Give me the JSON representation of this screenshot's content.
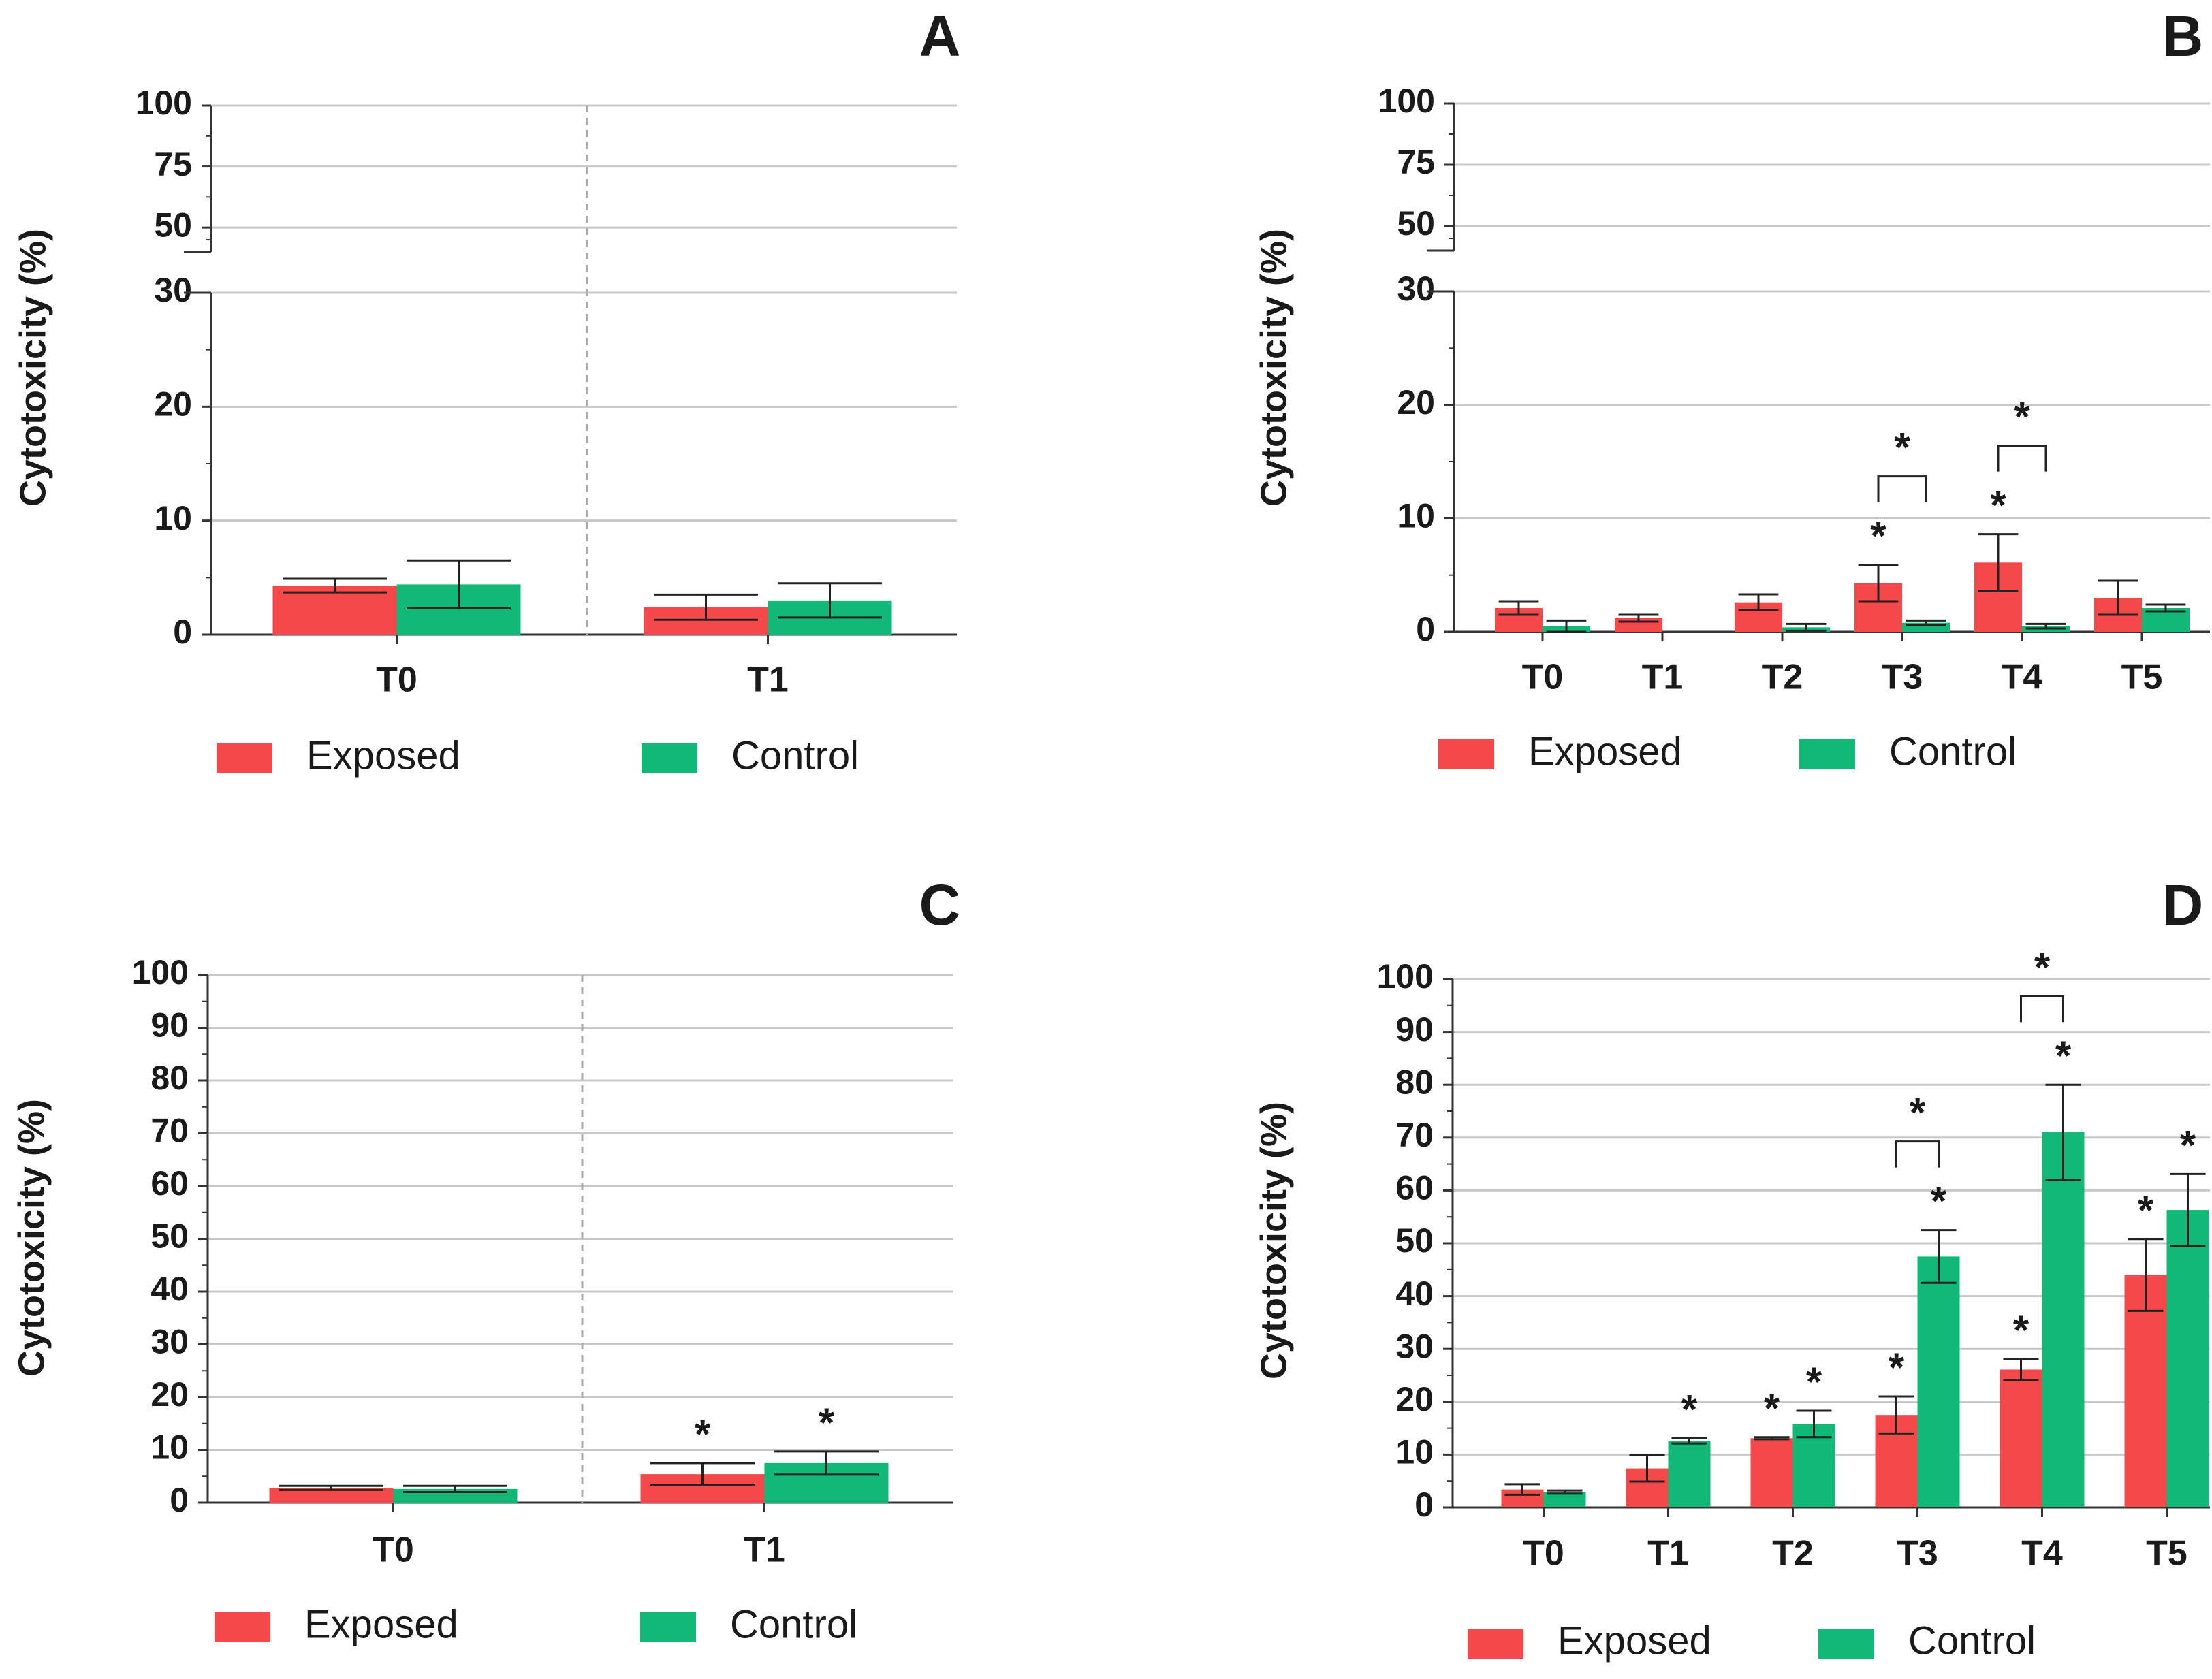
{
  "colors": {
    "exposed": "#f4484a",
    "control": "#12b876",
    "grid": "#c8c8c8",
    "axis": "#333333",
    "text": "#1a1a1a"
  },
  "chart_data": [
    {
      "panel_label": "A",
      "type": "bar",
      "ylabel": "Cytotoxicity (%)",
      "axis_break": true,
      "upper_ticks": [
        "50",
        "75",
        "100"
      ],
      "lower_ticks": [
        "0",
        "10",
        "20",
        "30"
      ],
      "categories": [
        "T0",
        "T1"
      ],
      "series": [
        {
          "name": "Exposed",
          "values": [
            4.3,
            2.4
          ],
          "errors": [
            0.6,
            1.1
          ]
        },
        {
          "name": "Control",
          "values": [
            4.4,
            3.0
          ],
          "errors": [
            2.1,
            1.5
          ]
        }
      ],
      "significance": [],
      "legend": [
        "Exposed",
        "Control"
      ]
    },
    {
      "panel_label": "B",
      "type": "bar",
      "ylabel": "Cytotoxicity (%)",
      "axis_break": true,
      "upper_ticks": [
        "50",
        "75",
        "100"
      ],
      "lower_ticks": [
        "0",
        "10",
        "20",
        "30"
      ],
      "categories": [
        "T0",
        "T1",
        "T2",
        "T3",
        "T4",
        "T5"
      ],
      "series": [
        {
          "name": "Exposed",
          "values": [
            2.1,
            1.2,
            2.6,
            4.3,
            6.1,
            3.0
          ],
          "errors": [
            0.6,
            0.3,
            0.7,
            1.6,
            2.5,
            1.5
          ]
        },
        {
          "name": "Control",
          "values": [
            0.5,
            0.0,
            0.4,
            0.8,
            0.5,
            2.1
          ],
          "errors": [
            0.5,
            0.0,
            0.3,
            0.2,
            0.2,
            0.3
          ]
        }
      ],
      "significance": [
        {
          "category": "T3",
          "target": "Exposed",
          "label": "*"
        },
        {
          "category": "T4",
          "target": "Exposed",
          "label": "*"
        },
        {
          "category": "T3",
          "target": "bracket",
          "label": "*"
        },
        {
          "category": "T4",
          "target": "bracket",
          "label": "*"
        }
      ],
      "legend": [
        "Exposed",
        "Control"
      ]
    },
    {
      "panel_label": "C",
      "type": "bar",
      "ylabel": "Cytotoxicity (%)",
      "axis_break": false,
      "ylim": [
        0,
        100
      ],
      "yticks": [
        "0",
        "10",
        "20",
        "30",
        "40",
        "50",
        "60",
        "70",
        "80",
        "90",
        "100"
      ],
      "categories": [
        "T0",
        "T1"
      ],
      "series": [
        {
          "name": "Exposed",
          "values": [
            2.8,
            5.4
          ],
          "errors": [
            0.4,
            2.1
          ]
        },
        {
          "name": "Control",
          "values": [
            2.6,
            7.5
          ],
          "errors": [
            0.6,
            2.2
          ]
        }
      ],
      "significance": [
        {
          "category": "T1",
          "target": "Exposed",
          "label": "*"
        },
        {
          "category": "T1",
          "target": "Control",
          "label": "*"
        }
      ],
      "legend": [
        "Exposed",
        "Control"
      ]
    },
    {
      "panel_label": "D",
      "type": "bar",
      "ylabel": "Cytotoxicity (%)",
      "axis_break": false,
      "ylim": [
        0,
        100
      ],
      "yticks": [
        "0",
        "10",
        "20",
        "30",
        "40",
        "50",
        "60",
        "70",
        "80",
        "90",
        "100"
      ],
      "categories": [
        "T0",
        "T1",
        "T2",
        "T3",
        "T4",
        "T5"
      ],
      "series": [
        {
          "name": "Exposed",
          "values": [
            3.4,
            7.4,
            13.1,
            17.5,
            26.1,
            44.0
          ],
          "errors": [
            1.0,
            2.5,
            0.2,
            3.5,
            2.0,
            6.8
          ]
        },
        {
          "name": "Control",
          "values": [
            2.9,
            12.6,
            15.8,
            47.5,
            71.0,
            56.3
          ],
          "errors": [
            0.3,
            0.5,
            2.5,
            5.0,
            9.0,
            6.8
          ]
        }
      ],
      "significance": [
        {
          "category": "T1",
          "target": "Control",
          "label": "*"
        },
        {
          "category": "T2",
          "target": "Exposed",
          "label": "*"
        },
        {
          "category": "T2",
          "target": "Control",
          "label": "*"
        },
        {
          "category": "T3",
          "target": "Exposed",
          "label": "*"
        },
        {
          "category": "T3",
          "target": "Control",
          "label": "*"
        },
        {
          "category": "T4",
          "target": "Exposed",
          "label": "*"
        },
        {
          "category": "T4",
          "target": "Control",
          "label": "*"
        },
        {
          "category": "T5",
          "target": "Exposed",
          "label": "*"
        },
        {
          "category": "T5",
          "target": "Control",
          "label": "*"
        },
        {
          "category": "T3",
          "target": "bracket",
          "label": "*"
        },
        {
          "category": "T4",
          "target": "bracket",
          "label": "*"
        }
      ],
      "legend": [
        "Exposed",
        "Control"
      ]
    }
  ]
}
